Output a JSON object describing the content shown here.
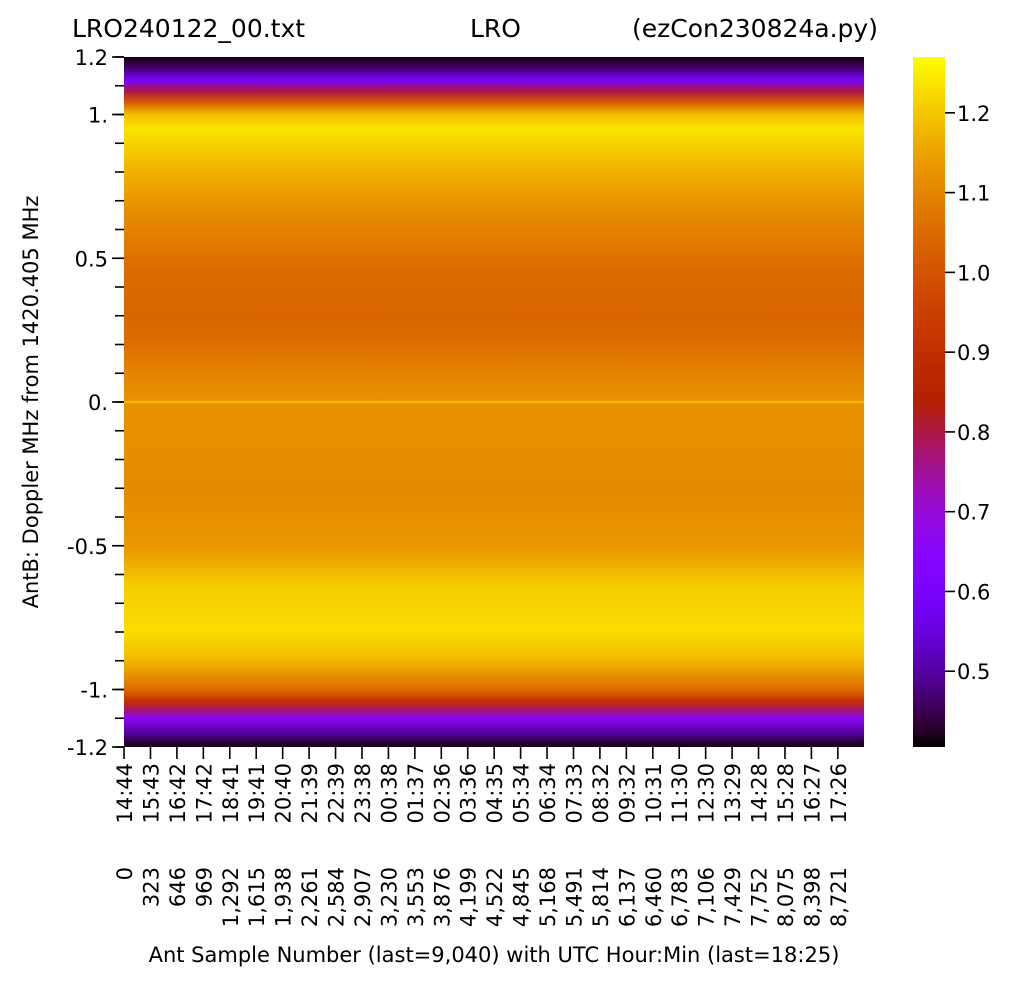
{
  "chart_data": {
    "type": "heatmap",
    "title": {
      "left": "LRO240122_00.txt",
      "center": "LRO",
      "right": "(ezCon230824a.py)"
    },
    "xlabel": "Ant Sample Number (last=9,040) with UTC Hour:Min (last=18:25)",
    "ylabel": "AntB:  Doppler MHz from 1420.405 MHz",
    "ylim": [
      -1.2,
      1.2
    ],
    "y_ticks": [
      {
        "value": 1.2,
        "label": "1.2"
      },
      {
        "value": 1.0,
        "label": "1."
      },
      {
        "value": 0.5,
        "label": "0.5"
      },
      {
        "value": 0.0,
        "label": "0."
      },
      {
        "value": -0.5,
        "label": "-0.5"
      },
      {
        "value": -1.0,
        "label": "-1."
      },
      {
        "value": -1.2,
        "label": "-1.2"
      }
    ],
    "y_minor_tick_step": 0.1,
    "x_ticks": [
      {
        "sample": 0,
        "sample_label": "0",
        "time": "14:44"
      },
      {
        "sample": 323,
        "sample_label": "323",
        "time": "15:43"
      },
      {
        "sample": 646,
        "sample_label": "646",
        "time": "16:42"
      },
      {
        "sample": 969,
        "sample_label": "969",
        "time": "17:42"
      },
      {
        "sample": 1292,
        "sample_label": "1,292",
        "time": "18:41"
      },
      {
        "sample": 1615,
        "sample_label": "1,615",
        "time": "19:41"
      },
      {
        "sample": 1938,
        "sample_label": "1,938",
        "time": "20:40"
      },
      {
        "sample": 2261,
        "sample_label": "2,261",
        "time": "21:39"
      },
      {
        "sample": 2584,
        "sample_label": "2,584",
        "time": "22:39"
      },
      {
        "sample": 2907,
        "sample_label": "2,907",
        "time": "23:38"
      },
      {
        "sample": 3230,
        "sample_label": "3,230",
        "time": "00:38"
      },
      {
        "sample": 3553,
        "sample_label": "3,553",
        "time": "01:37"
      },
      {
        "sample": 3876,
        "sample_label": "3,876",
        "time": "02:36"
      },
      {
        "sample": 4199,
        "sample_label": "4,199",
        "time": "03:36"
      },
      {
        "sample": 4522,
        "sample_label": "4,522",
        "time": "04:35"
      },
      {
        "sample": 4845,
        "sample_label": "4,845",
        "time": "05:34"
      },
      {
        "sample": 5168,
        "sample_label": "5,168",
        "time": "06:34"
      },
      {
        "sample": 5491,
        "sample_label": "5,491",
        "time": "07:33"
      },
      {
        "sample": 5814,
        "sample_label": "5,814",
        "time": "08:32"
      },
      {
        "sample": 6137,
        "sample_label": "6,137",
        "time": "09:32"
      },
      {
        "sample": 6460,
        "sample_label": "6,460",
        "time": "10:31"
      },
      {
        "sample": 6783,
        "sample_label": "6,783",
        "time": "11:30"
      },
      {
        "sample": 7106,
        "sample_label": "7,106",
        "time": "12:30"
      },
      {
        "sample": 7429,
        "sample_label": "7,429",
        "time": "13:29"
      },
      {
        "sample": 7752,
        "sample_label": "7,752",
        "time": "14:28"
      },
      {
        "sample": 8075,
        "sample_label": "8,075",
        "time": "15:28"
      },
      {
        "sample": 8398,
        "sample_label": "8,398",
        "time": "16:27"
      },
      {
        "sample": 8721,
        "sample_label": "8,721",
        "time": "17:26"
      }
    ],
    "x_last_sample": 9040,
    "colormap": "gnuplot",
    "colorbar": {
      "range": [
        0.405,
        1.27
      ],
      "ticks": [
        {
          "value": 0.5,
          "label": "0.5"
        },
        {
          "value": 0.6,
          "label": "0.6"
        },
        {
          "value": 0.7,
          "label": "0.7"
        },
        {
          "value": 0.8,
          "label": "0.8"
        },
        {
          "value": 0.9,
          "label": "0.9"
        },
        {
          "value": 1.0,
          "label": "1.0"
        },
        {
          "value": 1.1,
          "label": "1.1"
        },
        {
          "value": 1.2,
          "label": "1.2"
        }
      ]
    },
    "profile_doppler_mhz": [
      -1.2,
      -1.15,
      -1.1,
      -1.07,
      -1.04,
      -1.0,
      -0.9,
      -0.8,
      -0.65,
      -0.5,
      -0.3,
      -0.1,
      -0.005,
      0.0,
      0.005,
      0.1,
      0.2,
      0.3,
      0.45,
      0.65,
      0.8,
      0.95,
      1.0,
      1.04,
      1.08,
      1.12,
      1.16,
      1.2
    ],
    "profile_value": [
      0.41,
      0.5,
      0.66,
      0.78,
      0.9,
      1.05,
      1.18,
      1.23,
      1.21,
      1.13,
      1.11,
      1.12,
      1.12,
      1.21,
      1.12,
      1.1,
      1.06,
      1.04,
      1.05,
      1.11,
      1.17,
      1.24,
      1.19,
      1.03,
      0.8,
      0.6,
      0.47,
      0.41
    ]
  }
}
